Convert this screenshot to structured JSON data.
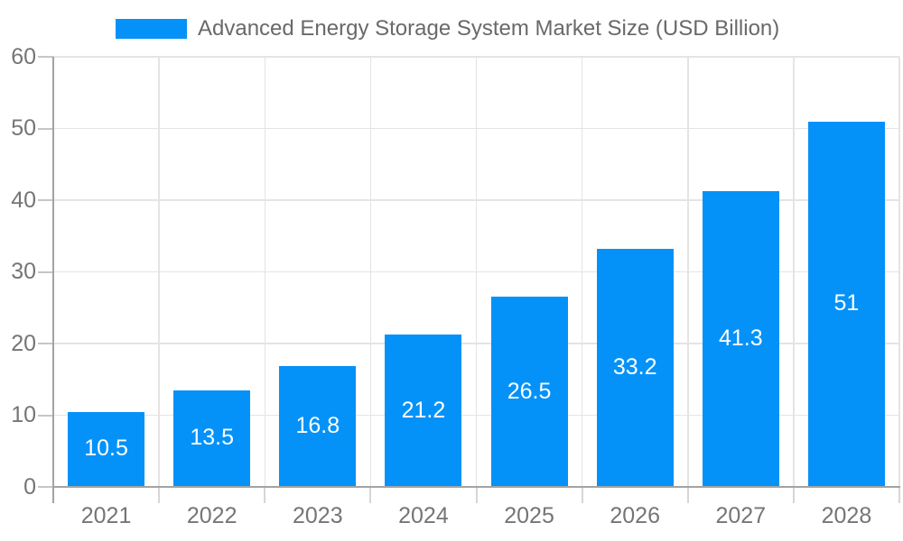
{
  "legend": {
    "label": "Advanced Energy Storage System Market Size (USD Billion)"
  },
  "colors": {
    "bar": "#0492F8",
    "axis_text": "#757575",
    "legend_text": "#696969",
    "grid_line": "#E4E4E4",
    "axis_line": "#A3A3A3",
    "tick": "#C6C6C6",
    "value_label": "#FFFFFF",
    "background": "#FFFFFF"
  },
  "chart_data": {
    "type": "bar",
    "title": "Advanced Energy Storage System Market Size (USD Billion)",
    "categories": [
      "2021",
      "2022",
      "2023",
      "2024",
      "2025",
      "2026",
      "2027",
      "2028"
    ],
    "values": [
      10.5,
      13.5,
      16.8,
      21.2,
      26.5,
      33.2,
      41.3,
      51
    ],
    "value_labels": [
      "10.5",
      "13.5",
      "16.8",
      "21.2",
      "26.5",
      "33.2",
      "41.3",
      "51"
    ],
    "xlabel": "",
    "ylabel": "",
    "ylim": [
      0,
      60
    ],
    "yticks": [
      0,
      10,
      20,
      30,
      40,
      50,
      60
    ],
    "grid": true,
    "legend_position": "top",
    "value_label_position": "inside-center"
  }
}
